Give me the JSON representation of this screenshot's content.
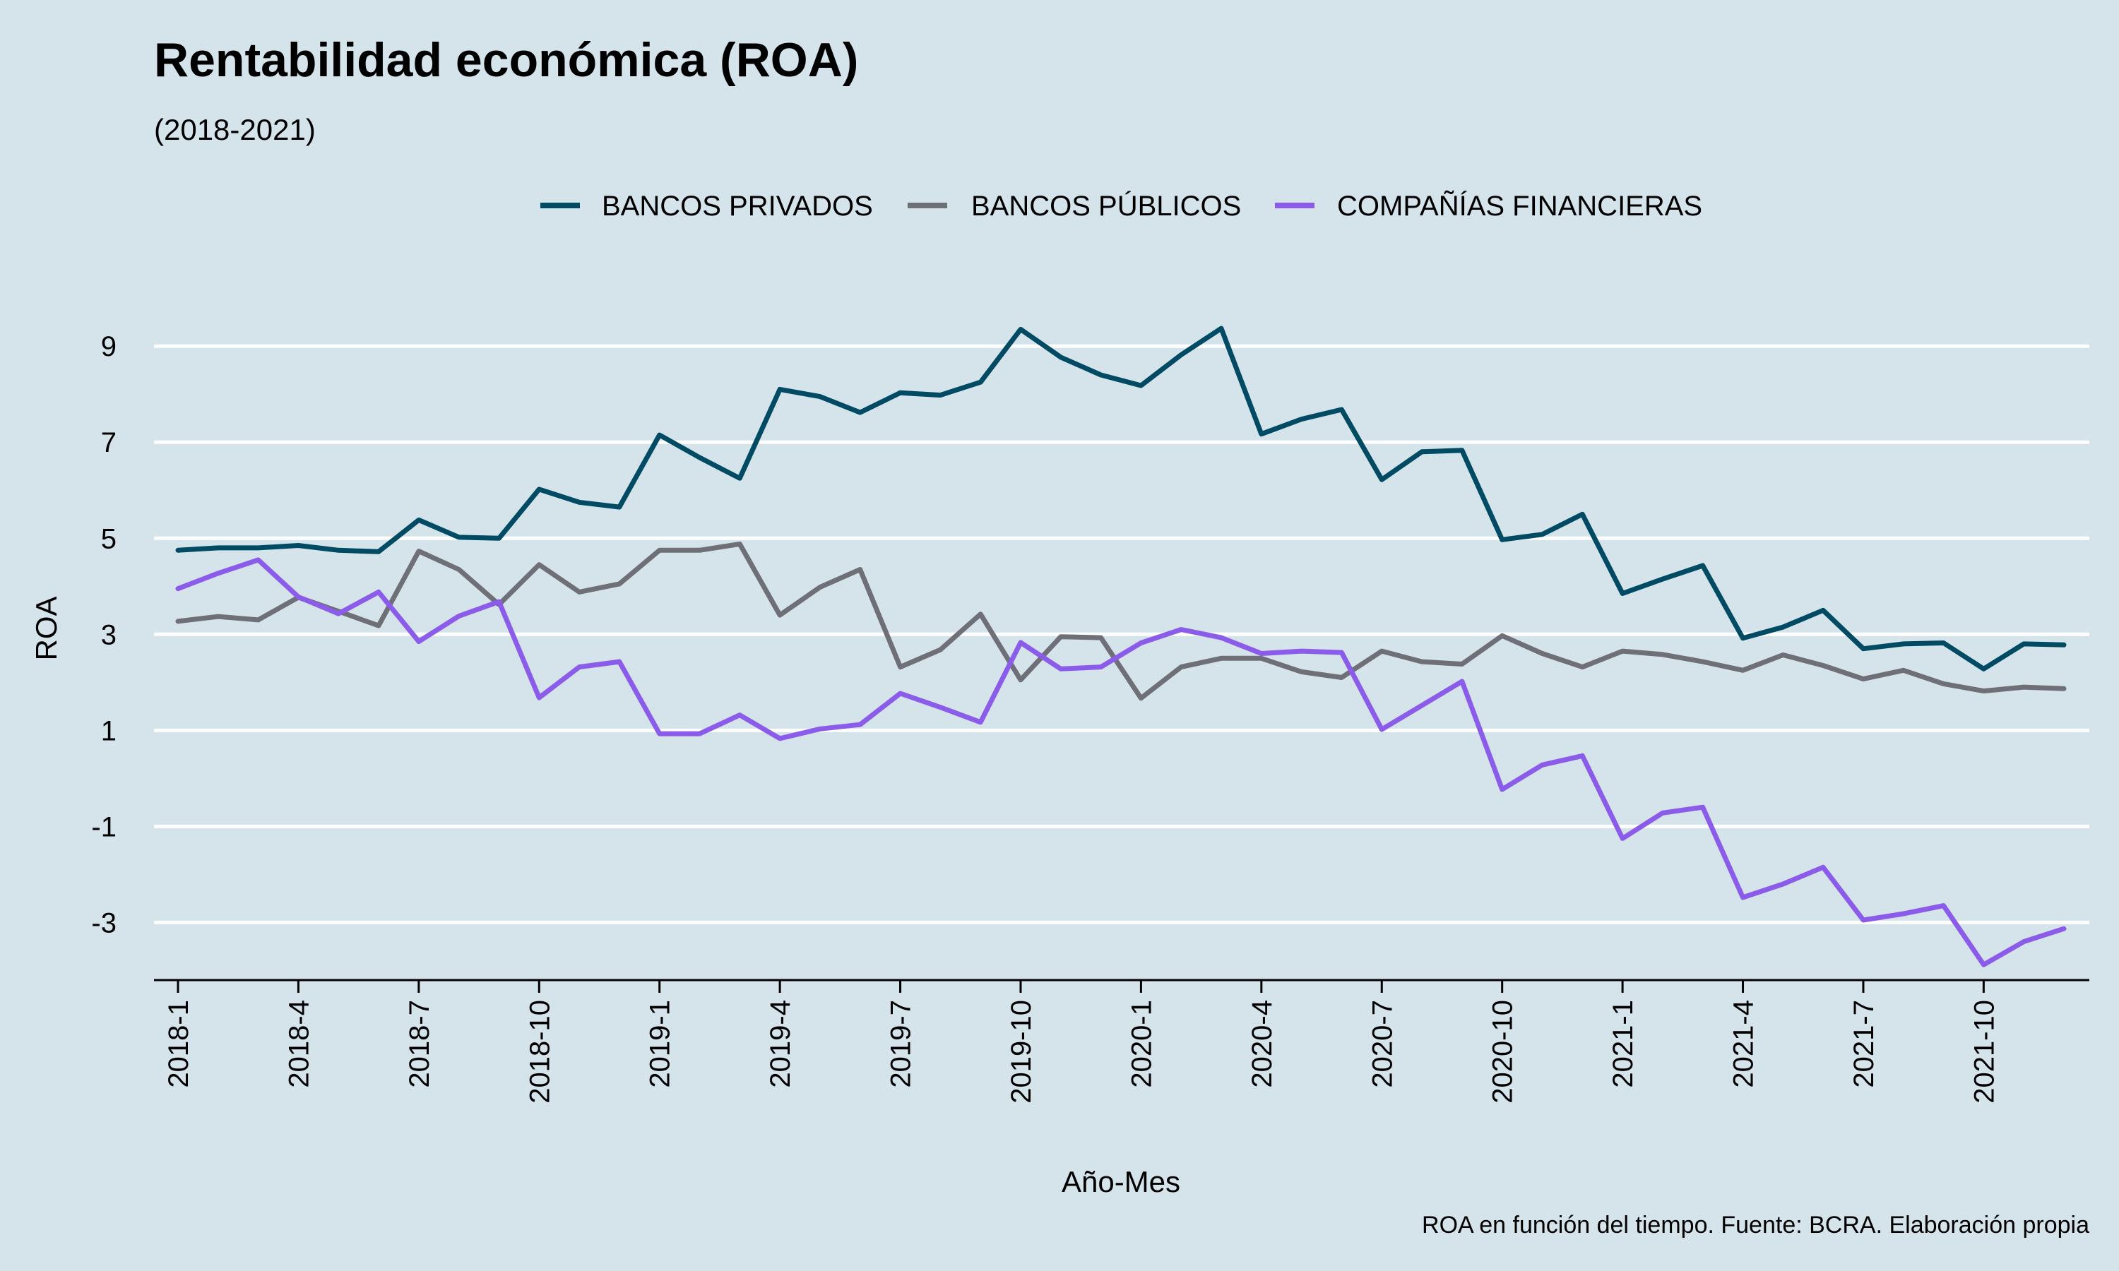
{
  "chart_data": {
    "type": "line",
    "title": "Rentabilidad económica (ROA)",
    "subtitle": "(2018-2021)",
    "xlabel": "Año-Mes",
    "ylabel": "ROA",
    "caption": "ROA en función del tiempo. Fuente: BCRA. Elaboración propia",
    "ylim": [
      -4.2,
      10.4
    ],
    "yticks": [
      -3,
      -1,
      1,
      3,
      5,
      7,
      9
    ],
    "grid": true,
    "legend_position": "top",
    "x": [
      "2018-1",
      "2018-2",
      "2018-3",
      "2018-4",
      "2018-5",
      "2018-6",
      "2018-7",
      "2018-8",
      "2018-9",
      "2018-10",
      "2018-11",
      "2018-12",
      "2019-1",
      "2019-2",
      "2019-3",
      "2019-4",
      "2019-5",
      "2019-6",
      "2019-7",
      "2019-8",
      "2019-9",
      "2019-10",
      "2019-11",
      "2019-12",
      "2020-1",
      "2020-2",
      "2020-3",
      "2020-4",
      "2020-5",
      "2020-6",
      "2020-7",
      "2020-8",
      "2020-9",
      "2020-10",
      "2020-11",
      "2020-12",
      "2021-1",
      "2021-2",
      "2021-3",
      "2021-4",
      "2021-5",
      "2021-6",
      "2021-7",
      "2021-8",
      "2021-9",
      "2021-10",
      "2021-11",
      "2021-12"
    ],
    "xticks": [
      "2018-1",
      "2018-4",
      "2018-7",
      "2018-10",
      "2019-1",
      "2019-4",
      "2019-7",
      "2019-10",
      "2020-1",
      "2020-4",
      "2020-7",
      "2020-10",
      "2021-1",
      "2021-4",
      "2021-7",
      "2021-10"
    ],
    "series": [
      {
        "name": "BANCOS PRIVADOS",
        "color": "#004b63",
        "values": [
          4.75,
          4.8,
          4.8,
          4.85,
          4.75,
          4.72,
          5.38,
          5.02,
          5.0,
          6.02,
          5.75,
          5.65,
          7.15,
          6.68,
          6.25,
          8.1,
          7.95,
          7.62,
          8.03,
          7.98,
          8.25,
          9.35,
          8.77,
          8.4,
          8.18,
          8.82,
          9.37,
          7.17,
          7.48,
          7.68,
          6.22,
          6.8,
          6.83,
          4.97,
          5.08,
          5.5,
          3.85,
          4.15,
          4.43,
          2.92,
          3.15,
          3.5,
          2.7,
          2.8,
          2.82,
          2.28,
          2.8,
          2.78
        ]
      },
      {
        "name": "BANCOS PÚBLICOS",
        "color": "#6f6f78",
        "values": [
          3.27,
          3.37,
          3.3,
          3.77,
          3.48,
          3.18,
          4.73,
          4.35,
          3.62,
          4.45,
          3.88,
          4.05,
          4.75,
          4.75,
          4.88,
          3.4,
          3.98,
          4.35,
          2.32,
          2.68,
          3.42,
          2.05,
          2.95,
          2.93,
          1.67,
          2.32,
          2.5,
          2.5,
          2.22,
          2.1,
          2.65,
          2.43,
          2.38,
          2.97,
          2.6,
          2.32,
          2.65,
          2.58,
          2.43,
          2.25,
          2.57,
          2.35,
          2.07,
          2.25,
          1.97,
          1.82,
          1.9,
          1.87
        ]
      },
      {
        "name": "COMPAÑÍAS FINANCIERAS",
        "color": "#8b5bea",
        "values": [
          3.95,
          4.27,
          4.55,
          3.78,
          3.43,
          3.88,
          2.85,
          3.38,
          3.68,
          1.68,
          2.32,
          2.43,
          0.93,
          0.93,
          1.32,
          0.83,
          1.03,
          1.12,
          1.77,
          1.48,
          1.17,
          2.83,
          2.28,
          2.32,
          2.82,
          3.1,
          2.93,
          2.6,
          2.65,
          2.62,
          1.02,
          1.52,
          2.02,
          -0.23,
          0.28,
          0.47,
          -1.25,
          -0.72,
          -0.6,
          -2.48,
          -2.2,
          -1.85,
          -2.95,
          -2.82,
          -2.65,
          -3.88,
          -3.4,
          -3.13
        ]
      }
    ]
  }
}
